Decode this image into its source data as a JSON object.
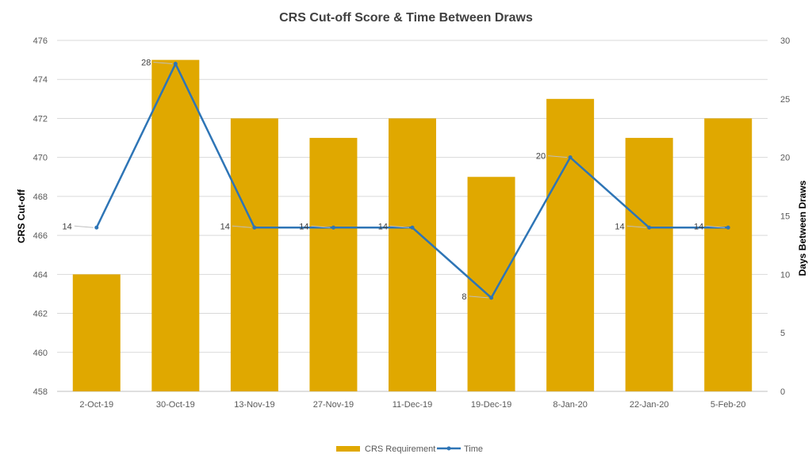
{
  "chart_data": {
    "type": "bar+line",
    "title": "CRS Cut-off Score & Time Between Draws",
    "xlabel": "",
    "ylabel": "CRS Cut-off",
    "y2label": "Days Between Draws",
    "categories": [
      "2-Oct-19",
      "30-Oct-19",
      "13-Nov-19",
      "27-Nov-19",
      "11-Dec-19",
      "19-Dec-19",
      "8-Jan-20",
      "22-Jan-20",
      "5-Feb-20"
    ],
    "series": [
      {
        "name": "CRS Requirement",
        "type": "bar",
        "axis": "left",
        "color": "#E0A800",
        "values": [
          464,
          475,
          472,
          471,
          472,
          469,
          473,
          471,
          472
        ]
      },
      {
        "name": "Time",
        "type": "line",
        "axis": "right",
        "color": "#2E75B6",
        "values": [
          14,
          28,
          14,
          14,
          14,
          8,
          20,
          14,
          14
        ],
        "data_labels": true
      }
    ],
    "ylim": [
      458,
      476
    ],
    "yticks": [
      458,
      460,
      462,
      464,
      466,
      468,
      470,
      472,
      474,
      476
    ],
    "y2lim": [
      0,
      30
    ],
    "y2ticks": [
      0,
      5,
      10,
      15,
      20,
      25,
      30
    ],
    "grid": true,
    "legend": "bottom-center"
  }
}
